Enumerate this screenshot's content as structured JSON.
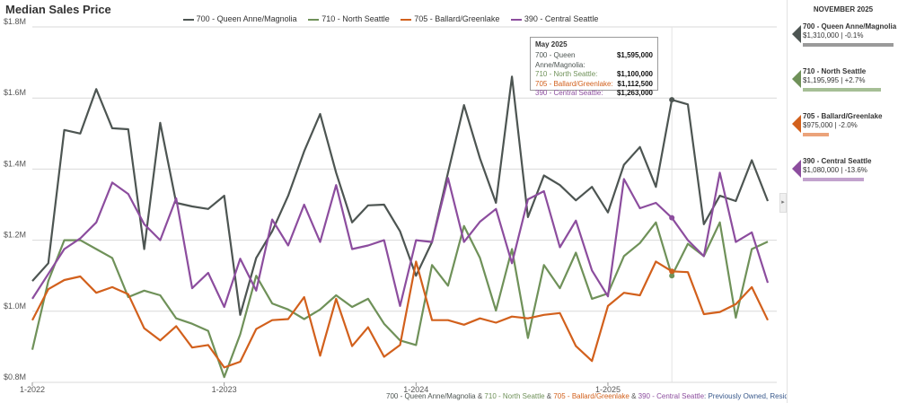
{
  "title": "Median Sales Price",
  "legend": [
    {
      "name": "700 - Queen Anne/Magnolia",
      "color": "#4d5552"
    },
    {
      "name": "710 - North Seattle",
      "color": "#6f9159"
    },
    {
      "name": "705 - Ballard/Greenlake",
      "color": "#d2601c"
    },
    {
      "name": "390 - Central Seattle",
      "color": "#8c4d9e"
    }
  ],
  "tooltip": {
    "title": "May 2025",
    "rows": [
      {
        "label": "700 - Queen Anne/Magnolia:",
        "value": "$1,595,000",
        "color": "#4d5552"
      },
      {
        "label": "710 - North Seattle:",
        "value": "$1,100,000",
        "color": "#6f9159"
      },
      {
        "label": "705 - Ballard/Greenlake:",
        "value": "$1,112,500",
        "color": "#d2601c"
      },
      {
        "label": "390 - Central Seattle:",
        "value": "$1,263,000",
        "color": "#8c4d9e"
      }
    ]
  },
  "footer": {
    "s1": "700 - Queen Anne/Magnolia",
    "amp1": " & ",
    "s2": "710 - North Seattle",
    "amp2": " & ",
    "s3": "705 - Ballard/Greenlake",
    "amp3": " & ",
    "s4": "390 - Central Seattle",
    "rest": ": Previously Owned, Residential"
  },
  "panel": {
    "title": "NOVEMBER 2025",
    "cards": [
      {
        "name": "700 - Queen Anne/Magnolia",
        "value": "$1,310,000 | -0.1%",
        "color": "#4d5552",
        "bar_color": "#9a9a9a",
        "bar_fraction": 0.97
      },
      {
        "name": "710 - North Seattle",
        "value": "$1,195,995 | +2.7%",
        "color": "#6f9159",
        "bar_color": "#a6bf96",
        "bar_fraction": 0.84
      },
      {
        "name": "705 - Ballard/Greenlake",
        "value": "$975,000 | -2.0%",
        "color": "#d2601c",
        "bar_color": "#eba37a",
        "bar_fraction": 0.28
      },
      {
        "name": "390 - Central Seattle",
        "value": "$1,080,000 | -13.6%",
        "color": "#8c4d9e",
        "bar_color": "#c2a3cd",
        "bar_fraction": 0.65
      }
    ]
  },
  "chart_data": {
    "type": "line",
    "title": "Median Sales Price",
    "x_start": "2022-01",
    "x_ticks": [
      "1-2022",
      "1-2023",
      "1-2024",
      "1-2025"
    ],
    "y_ticks": [
      "$0.8M",
      "$1.0M",
      "$1.2M",
      "$1.4M",
      "$1.6M",
      "$1.8M"
    ],
    "ylim": [
      800000,
      1800000
    ],
    "grid": true,
    "highlight_index": 40,
    "series": [
      {
        "name": "700 - Queen Anne/Magnolia",
        "color": "#4d5552",
        "values": [
          1085000,
          1135000,
          1510000,
          1500000,
          1625000,
          1515000,
          1512000,
          1175000,
          1530000,
          1305000,
          1295000,
          1288000,
          1325000,
          990000,
          1150000,
          1225000,
          1325000,
          1450000,
          1555000,
          1390000,
          1250000,
          1298000,
          1300000,
          1225000,
          1100000,
          1195000,
          1390000,
          1580000,
          1430000,
          1305000,
          1660000,
          1265000,
          1382000,
          1355000,
          1312000,
          1350000,
          1278000,
          1412000,
          1462000,
          1350000,
          1595000,
          1582000,
          1245000,
          1325000,
          1310000,
          1425000,
          1310000
        ]
      },
      {
        "name": "710 - North Seattle",
        "color": "#6f9159",
        "values": [
          892000,
          1085000,
          1200000,
          1200000,
          1175000,
          1150000,
          1040000,
          1058000,
          1045000,
          980000,
          965000,
          945000,
          815000,
          935000,
          1100000,
          1022000,
          1005000,
          978000,
          1005000,
          1045000,
          1012000,
          1035000,
          965000,
          918000,
          905000,
          1130000,
          1072000,
          1240000,
          1150000,
          1002000,
          1175000,
          925000,
          1130000,
          1065000,
          1165000,
          1035000,
          1050000,
          1155000,
          1192000,
          1250000,
          1100000,
          1190000,
          1155000,
          1250000,
          982000,
          1175000,
          1195995
        ]
      },
      {
        "name": "705 - Ballard/Greenlake",
        "color": "#d2601c",
        "values": [
          975000,
          1062000,
          1088000,
          1098000,
          1052000,
          1068000,
          1048000,
          952000,
          918000,
          958000,
          898000,
          905000,
          842000,
          858000,
          950000,
          975000,
          978000,
          1040000,
          875000,
          1035000,
          902000,
          955000,
          872000,
          905000,
          1140000,
          975000,
          975000,
          962000,
          980000,
          968000,
          985000,
          980000,
          990000,
          995000,
          902000,
          860000,
          1015000,
          1052000,
          1045000,
          1140000,
          1112500,
          1110000,
          992000,
          998000,
          1020000,
          1068000,
          975000
        ]
      },
      {
        "name": "390 - Central Seattle",
        "color": "#8c4d9e",
        "values": [
          1035000,
          1105000,
          1175000,
          1205000,
          1250000,
          1362000,
          1330000,
          1245000,
          1200000,
          1318000,
          1065000,
          1108000,
          1012000,
          1148000,
          1058000,
          1258000,
          1185000,
          1300000,
          1195000,
          1355000,
          1175000,
          1185000,
          1200000,
          1015000,
          1200000,
          1195000,
          1375000,
          1195000,
          1252000,
          1288000,
          1135000,
          1315000,
          1338000,
          1180000,
          1255000,
          1115000,
          1042000,
          1372000,
          1290000,
          1305000,
          1263000,
          1200000,
          1155000,
          1390000,
          1195000,
          1222000,
          1080000
        ]
      }
    ]
  }
}
